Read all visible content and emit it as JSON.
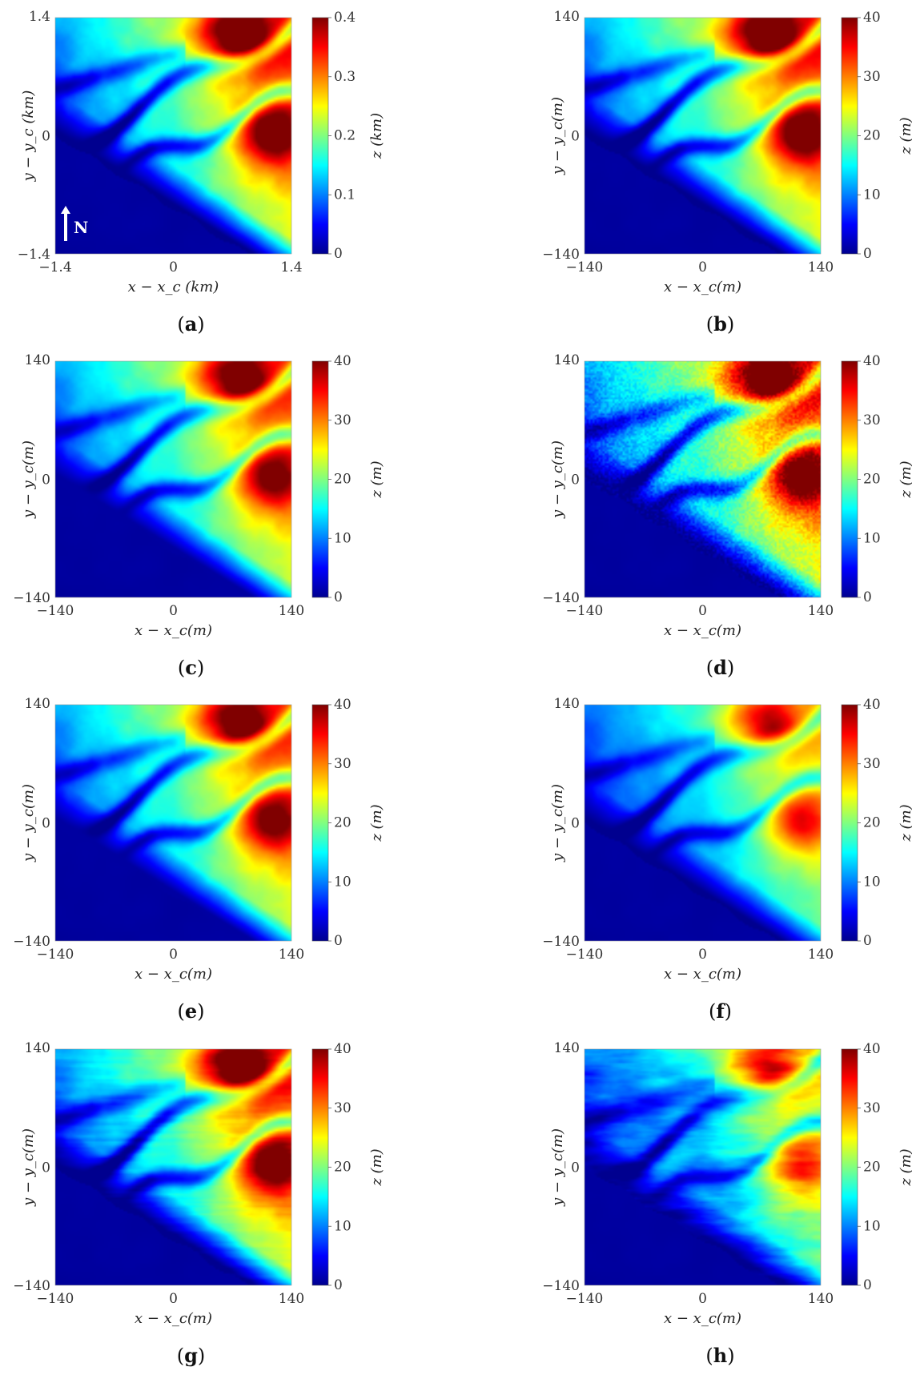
{
  "figure": {
    "panels": [
      {
        "id": "a",
        "caption": "a",
        "x_ticks": [
          "−1.4",
          "0",
          "1.4"
        ],
        "y_ticks": [
          "1.4",
          "0",
          "−1.4"
        ],
        "xlabel": "x − x_c (km)",
        "ylabel": "y − y_c (km)",
        "cb_ticks": [
          "0.4",
          "0.3",
          "0.2",
          "0.1",
          "0"
        ],
        "cblabel": "z (km)",
        "north": "N",
        "variant": "smooth"
      },
      {
        "id": "b",
        "caption": "b",
        "x_ticks": [
          "−140",
          "0",
          "140"
        ],
        "y_ticks": [
          "140",
          "0",
          "−140"
        ],
        "xlabel": "x − x_c(m)",
        "ylabel": "y − y_c(m)",
        "cb_ticks": [
          "40",
          "30",
          "20",
          "10",
          "0"
        ],
        "cblabel": "z (m)",
        "variant": "smooth"
      },
      {
        "id": "c",
        "caption": "c",
        "x_ticks": [
          "−140",
          "0",
          "140"
        ],
        "y_ticks": [
          "140",
          "0",
          "−140"
        ],
        "xlabel": "x − x_c(m)",
        "ylabel": "y − y_c(m)",
        "cb_ticks": [
          "40",
          "30",
          "20",
          "10",
          "0"
        ],
        "cblabel": "z (m)",
        "variant": "blurred"
      },
      {
        "id": "d",
        "caption": "d",
        "x_ticks": [
          "−140",
          "0",
          "140"
        ],
        "y_ticks": [
          "140",
          "0",
          "−140"
        ],
        "xlabel": "x − x_c(m)",
        "ylabel": "y − y_c(m)",
        "cb_ticks": [
          "40",
          "30",
          "20",
          "10",
          "0"
        ],
        "cblabel": "z (m)",
        "variant": "noisy"
      },
      {
        "id": "e",
        "caption": "e",
        "x_ticks": [
          "−140",
          "0",
          "140"
        ],
        "y_ticks": [
          "140",
          "0",
          "−140"
        ],
        "xlabel": "x − x_c(m)",
        "ylabel": "y − y_c(m)",
        "cb_ticks": [
          "40",
          "30",
          "20",
          "10",
          "0"
        ],
        "cblabel": "z (m)",
        "variant": "blurred"
      },
      {
        "id": "f",
        "caption": "f",
        "x_ticks": [
          "−140",
          "0",
          "140"
        ],
        "y_ticks": [
          "140",
          "0",
          "−140"
        ],
        "xlabel": "x − x_c(m)",
        "ylabel": "y − y_c(m)",
        "cb_ticks": [
          "40",
          "30",
          "20",
          "10",
          "0"
        ],
        "cblabel": "z (m)",
        "variant": "lower"
      },
      {
        "id": "g",
        "caption": "g",
        "x_ticks": [
          "−140",
          "0",
          "140"
        ],
        "y_ticks": [
          "140",
          "0",
          "−140"
        ],
        "xlabel": "x − x_c(m)",
        "ylabel": "y − y_c(m)",
        "cb_ticks": [
          "40",
          "30",
          "20",
          "10",
          "0"
        ],
        "cblabel": "z (m)",
        "variant": "streaky"
      },
      {
        "id": "h",
        "caption": "h",
        "x_ticks": [
          "−140",
          "0",
          "140"
        ],
        "y_ticks": [
          "140",
          "0",
          "−140"
        ],
        "xlabel": "x − x_c(m)",
        "ylabel": "y − y_c(m)",
        "cb_ticks": [
          "40",
          "30",
          "20",
          "10",
          "0"
        ],
        "cblabel": "z (m)",
        "variant": "chaotic"
      }
    ]
  },
  "colors": {
    "colormap": [
      "#00008f",
      "#0000ff",
      "#0080ff",
      "#00ffff",
      "#80ff80",
      "#ffff00",
      "#ff8000",
      "#ff0000",
      "#800000"
    ]
  },
  "chart_data": [
    {
      "type": "heatmap",
      "panel": "a",
      "x_range": [
        -1.4,
        1.4
      ],
      "y_range": [
        -1.4,
        1.4
      ],
      "z_range": [
        0,
        0.4
      ],
      "z_unit": "km",
      "colormap": "jet"
    },
    {
      "type": "heatmap",
      "panel": "b",
      "x_range": [
        -140,
        140
      ],
      "y_range": [
        -140,
        140
      ],
      "z_range": [
        0,
        40
      ],
      "z_unit": "m",
      "colormap": "jet"
    },
    {
      "type": "heatmap",
      "panel": "c",
      "x_range": [
        -140,
        140
      ],
      "y_range": [
        -140,
        140
      ],
      "z_range": [
        0,
        40
      ],
      "z_unit": "m",
      "colormap": "jet"
    },
    {
      "type": "heatmap",
      "panel": "d",
      "x_range": [
        -140,
        140
      ],
      "y_range": [
        -140,
        140
      ],
      "z_range": [
        0,
        40
      ],
      "z_unit": "m",
      "colormap": "jet"
    },
    {
      "type": "heatmap",
      "panel": "e",
      "x_range": [
        -140,
        140
      ],
      "y_range": [
        -140,
        140
      ],
      "z_range": [
        0,
        40
      ],
      "z_unit": "m",
      "colormap": "jet"
    },
    {
      "type": "heatmap",
      "panel": "f",
      "x_range": [
        -140,
        140
      ],
      "y_range": [
        -140,
        140
      ],
      "z_range": [
        0,
        40
      ],
      "z_unit": "m",
      "colormap": "jet"
    },
    {
      "type": "heatmap",
      "panel": "g",
      "x_range": [
        -140,
        140
      ],
      "y_range": [
        -140,
        140
      ],
      "z_range": [
        0,
        40
      ],
      "z_unit": "m",
      "colormap": "jet"
    },
    {
      "type": "heatmap",
      "panel": "h",
      "x_range": [
        -140,
        140
      ],
      "y_range": [
        -140,
        140
      ],
      "z_range": [
        0,
        40
      ],
      "z_unit": "m",
      "colormap": "jet"
    }
  ]
}
